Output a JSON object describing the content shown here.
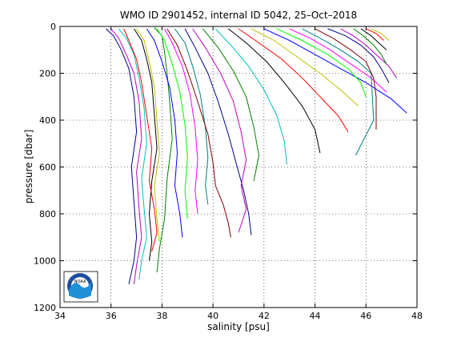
{
  "chart_data": {
    "type": "line",
    "title": "WMO ID 2901452, internal ID 5042, 25–Oct–2018",
    "xlabel": "salinity [psu]",
    "ylabel": "pressure [dbar]",
    "xlim": [
      34,
      48
    ],
    "ylim": [
      0,
      1200
    ],
    "y_inverted": true,
    "x_ticks": [
      34,
      36,
      38,
      40,
      42,
      44,
      46,
      48
    ],
    "y_ticks": [
      0,
      200,
      400,
      600,
      800,
      1000,
      1200
    ],
    "grid": "dotted",
    "logo": "noaa-logo",
    "series": [
      {
        "color": "#00007f",
        "x": [
          35.8,
          36.1,
          36.4,
          36.7,
          36.9,
          37.0,
          36.8,
          36.9,
          37.0,
          36.9,
          36.7
        ],
        "y": [
          10,
          40,
          100,
          180,
          300,
          450,
          600,
          750,
          900,
          1000,
          1100
        ]
      },
      {
        "color": "#bf00bf",
        "x": [
          36.0,
          36.3,
          36.6,
          36.9,
          37.1,
          37.2,
          37.0,
          37.1,
          37.2,
          37.0,
          36.9
        ],
        "y": [
          10,
          50,
          120,
          200,
          320,
          480,
          620,
          780,
          900,
          1020,
          1100
        ]
      },
      {
        "color": "#007f00",
        "x": [
          37.7,
          38.0,
          38.1,
          38.2,
          38.3,
          38.4,
          38.2,
          38.1,
          37.9,
          37.8
        ],
        "y": [
          5,
          40,
          110,
          200,
          320,
          480,
          650,
          820,
          950,
          1050
        ]
      },
      {
        "color": "#00bfbf",
        "x": [
          36.3,
          36.6,
          36.9,
          37.1,
          37.3,
          37.4,
          37.2,
          37.3,
          37.4,
          37.2,
          37.1
        ],
        "y": [
          10,
          50,
          120,
          220,
          350,
          500,
          650,
          780,
          900,
          1000,
          1080
        ]
      },
      {
        "color": "#000000",
        "x": [
          36.9,
          37.2,
          37.4,
          37.6,
          37.7,
          37.8,
          37.6,
          37.5,
          37.6,
          37.5
        ],
        "y": [
          10,
          60,
          140,
          240,
          380,
          520,
          660,
          800,
          920,
          1000
        ]
      },
      {
        "color": "#ff0000",
        "x": [
          36.5,
          36.7,
          37.0,
          37.2,
          37.4,
          37.6,
          37.5,
          37.7,
          37.8,
          37.6
        ],
        "y": [
          10,
          60,
          140,
          240,
          380,
          520,
          660,
          780,
          880,
          960
        ]
      },
      {
        "color": "#bfbf00",
        "x": [
          37.0,
          37.3,
          37.5,
          37.7,
          37.8,
          37.9,
          37.7,
          37.8,
          37.9
        ],
        "y": [
          10,
          60,
          150,
          260,
          400,
          540,
          680,
          820,
          920
        ]
      },
      {
        "color": "#0000ff",
        "x": [
          37.4,
          37.7,
          38.0,
          38.3,
          38.5,
          38.6,
          38.5,
          38.7,
          38.8
        ],
        "y": [
          10,
          60,
          150,
          260,
          400,
          540,
          680,
          800,
          900
        ]
      },
      {
        "color": "#00ff00",
        "x": [
          37.8,
          38.1,
          38.4,
          38.7,
          38.9,
          39.0,
          38.9,
          39.0
        ],
        "y": [
          10,
          60,
          160,
          280,
          420,
          560,
          700,
          820
        ]
      },
      {
        "color": "#ff00ff",
        "x": [
          38.1,
          38.4,
          38.8,
          39.1,
          39.3,
          39.4,
          39.3,
          39.4
        ],
        "y": [
          10,
          70,
          170,
          290,
          430,
          570,
          700,
          800
        ]
      },
      {
        "color": "#007f7f",
        "x": [
          38.5,
          38.9,
          39.2,
          39.5,
          39.7,
          39.8,
          39.7,
          39.8
        ],
        "y": [
          10,
          70,
          170,
          290,
          430,
          560,
          680,
          760
        ]
      },
      {
        "color": "#7f0000",
        "x": [
          38.2,
          38.6,
          39.0,
          39.4,
          39.8,
          40.0,
          40.1,
          40.4,
          40.6,
          40.7
        ],
        "y": [
          10,
          80,
          190,
          320,
          460,
          580,
          680,
          760,
          840,
          900
        ]
      },
      {
        "color": "#00007f",
        "x": [
          38.9,
          39.3,
          39.8,
          40.2,
          40.6,
          40.9,
          41.2,
          41.4,
          41.5
        ],
        "y": [
          10,
          90,
          200,
          320,
          460,
          580,
          700,
          800,
          890
        ]
      },
      {
        "color": "#bf00bf",
        "x": [
          39.2,
          39.7,
          40.3,
          40.8,
          41.1,
          41.3,
          41.1,
          41.3,
          41.0
        ],
        "y": [
          10,
          90,
          200,
          320,
          450,
          570,
          680,
          780,
          880
        ]
      },
      {
        "color": "#007f00",
        "x": [
          39.6,
          40.2,
          40.8,
          41.3,
          41.6,
          41.8,
          41.6
        ],
        "y": [
          10,
          90,
          190,
          300,
          430,
          550,
          660
        ]
      },
      {
        "color": "#00bfbf",
        "x": [
          40.1,
          40.7,
          41.4,
          42.0,
          42.5,
          42.8,
          42.9
        ],
        "y": [
          10,
          80,
          170,
          270,
          380,
          490,
          590
        ]
      },
      {
        "color": "#000000",
        "x": [
          40.6,
          41.3,
          42.1,
          42.8,
          43.5,
          44.0,
          44.2
        ],
        "y": [
          10,
          70,
          150,
          240,
          340,
          440,
          540
        ]
      },
      {
        "color": "#ff0000",
        "x": [
          41.0,
          41.8,
          42.7,
          43.5,
          44.2,
          44.9,
          45.3
        ],
        "y": [
          10,
          70,
          140,
          220,
          300,
          380,
          450
        ]
      },
      {
        "color": "#bfbf00",
        "x": [
          41.5,
          42.4,
          43.3,
          44.2,
          45.0,
          45.7
        ],
        "y": [
          10,
          60,
          130,
          200,
          270,
          340
        ]
      },
      {
        "color": "#0000ff",
        "x": [
          42.0,
          43.0,
          44.0,
          45.0,
          46.0,
          47.0,
          47.6
        ],
        "y": [
          10,
          60,
          120,
          180,
          240,
          310,
          370
        ]
      },
      {
        "color": "#00ff00",
        "x": [
          42.5,
          43.5,
          44.5,
          45.3,
          45.8,
          46.0
        ],
        "y": [
          10,
          60,
          120,
          180,
          240,
          300
        ]
      },
      {
        "color": "#ff00ff",
        "x": [
          43.0,
          43.8,
          44.6,
          45.4,
          46.2,
          46.8
        ],
        "y": [
          10,
          50,
          100,
          160,
          220,
          280
        ]
      },
      {
        "color": "#007f7f",
        "x": [
          43.5,
          44.2,
          45.0,
          45.7,
          46.2,
          46.3,
          45.6
        ],
        "y": [
          10,
          50,
          100,
          150,
          200,
          400,
          550
        ]
      },
      {
        "color": "#7f0000",
        "x": [
          44.0,
          44.7,
          45.4,
          46.0,
          46.3,
          46.4,
          46.4
        ],
        "y": [
          10,
          50,
          100,
          150,
          220,
          300,
          440
        ]
      },
      {
        "color": "#00007f",
        "x": [
          44.5,
          45.2,
          45.8,
          46.3,
          46.6,
          46.9
        ],
        "y": [
          10,
          40,
          80,
          130,
          180,
          240
        ]
      },
      {
        "color": "#bf00bf",
        "x": [
          45.0,
          45.5,
          46.0,
          46.4,
          46.9,
          47.2
        ],
        "y": [
          10,
          40,
          80,
          120,
          170,
          220
        ]
      },
      {
        "color": "#007f00",
        "x": [
          45.5,
          45.9,
          46.3,
          46.6,
          46.8
        ],
        "y": [
          10,
          40,
          80,
          120,
          160
        ]
      },
      {
        "color": "#000000",
        "x": [
          45.8,
          46.2,
          46.5,
          46.8
        ],
        "y": [
          10,
          40,
          70,
          100
        ]
      },
      {
        "color": "#ff0000",
        "x": [
          46.0,
          46.4,
          46.7
        ],
        "y": [
          10,
          30,
          60
        ]
      },
      {
        "color": "#bfbf00",
        "x": [
          46.2,
          46.6,
          46.9
        ],
        "y": [
          10,
          30,
          60
        ]
      }
    ]
  }
}
